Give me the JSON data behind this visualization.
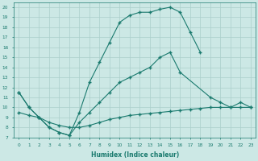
{
  "bg_color": "#cce8e5",
  "line_color": "#1a7a6e",
  "grid_color": "#aacfcb",
  "xlabel": "Humidex (Indice chaleur)",
  "xlim": [
    -0.5,
    23.5
  ],
  "ylim": [
    7,
    20.5
  ],
  "line1_x": [
    0,
    1,
    2,
    3,
    4,
    5,
    6,
    7,
    8,
    9,
    10,
    11,
    12,
    13,
    14,
    15,
    16,
    17,
    18
  ],
  "line1_y": [
    11.5,
    10.0,
    9.0,
    8.0,
    7.5,
    7.2,
    9.5,
    12.5,
    14.5,
    16.5,
    18.5,
    19.2,
    19.5,
    19.5,
    19.8,
    20.0,
    19.5,
    17.5,
    15.5
  ],
  "line2_x": [
    0,
    1,
    2,
    3,
    4,
    5,
    6,
    7,
    8,
    9,
    10,
    11,
    12,
    13,
    14,
    15,
    16,
    19,
    20,
    21,
    22,
    23
  ],
  "line2_y": [
    11.5,
    10.0,
    9.0,
    8.0,
    7.5,
    7.2,
    8.5,
    9.5,
    10.5,
    11.5,
    12.5,
    13.0,
    13.5,
    14.0,
    15.0,
    15.5,
    13.5,
    11.0,
    10.5,
    10.0,
    10.5,
    10.0
  ],
  "line3_x": [
    0,
    1,
    2,
    3,
    4,
    5,
    6,
    7,
    8,
    9,
    10,
    11,
    12,
    13,
    14,
    15,
    16,
    17,
    18,
    19,
    20,
    21,
    22,
    23
  ],
  "line3_y": [
    9.5,
    9.2,
    9.0,
    8.5,
    8.2,
    8.0,
    8.0,
    8.2,
    8.5,
    8.8,
    9.0,
    9.2,
    9.3,
    9.4,
    9.5,
    9.6,
    9.7,
    9.8,
    9.9,
    10.0,
    10.0,
    10.0,
    10.0,
    10.0
  ]
}
